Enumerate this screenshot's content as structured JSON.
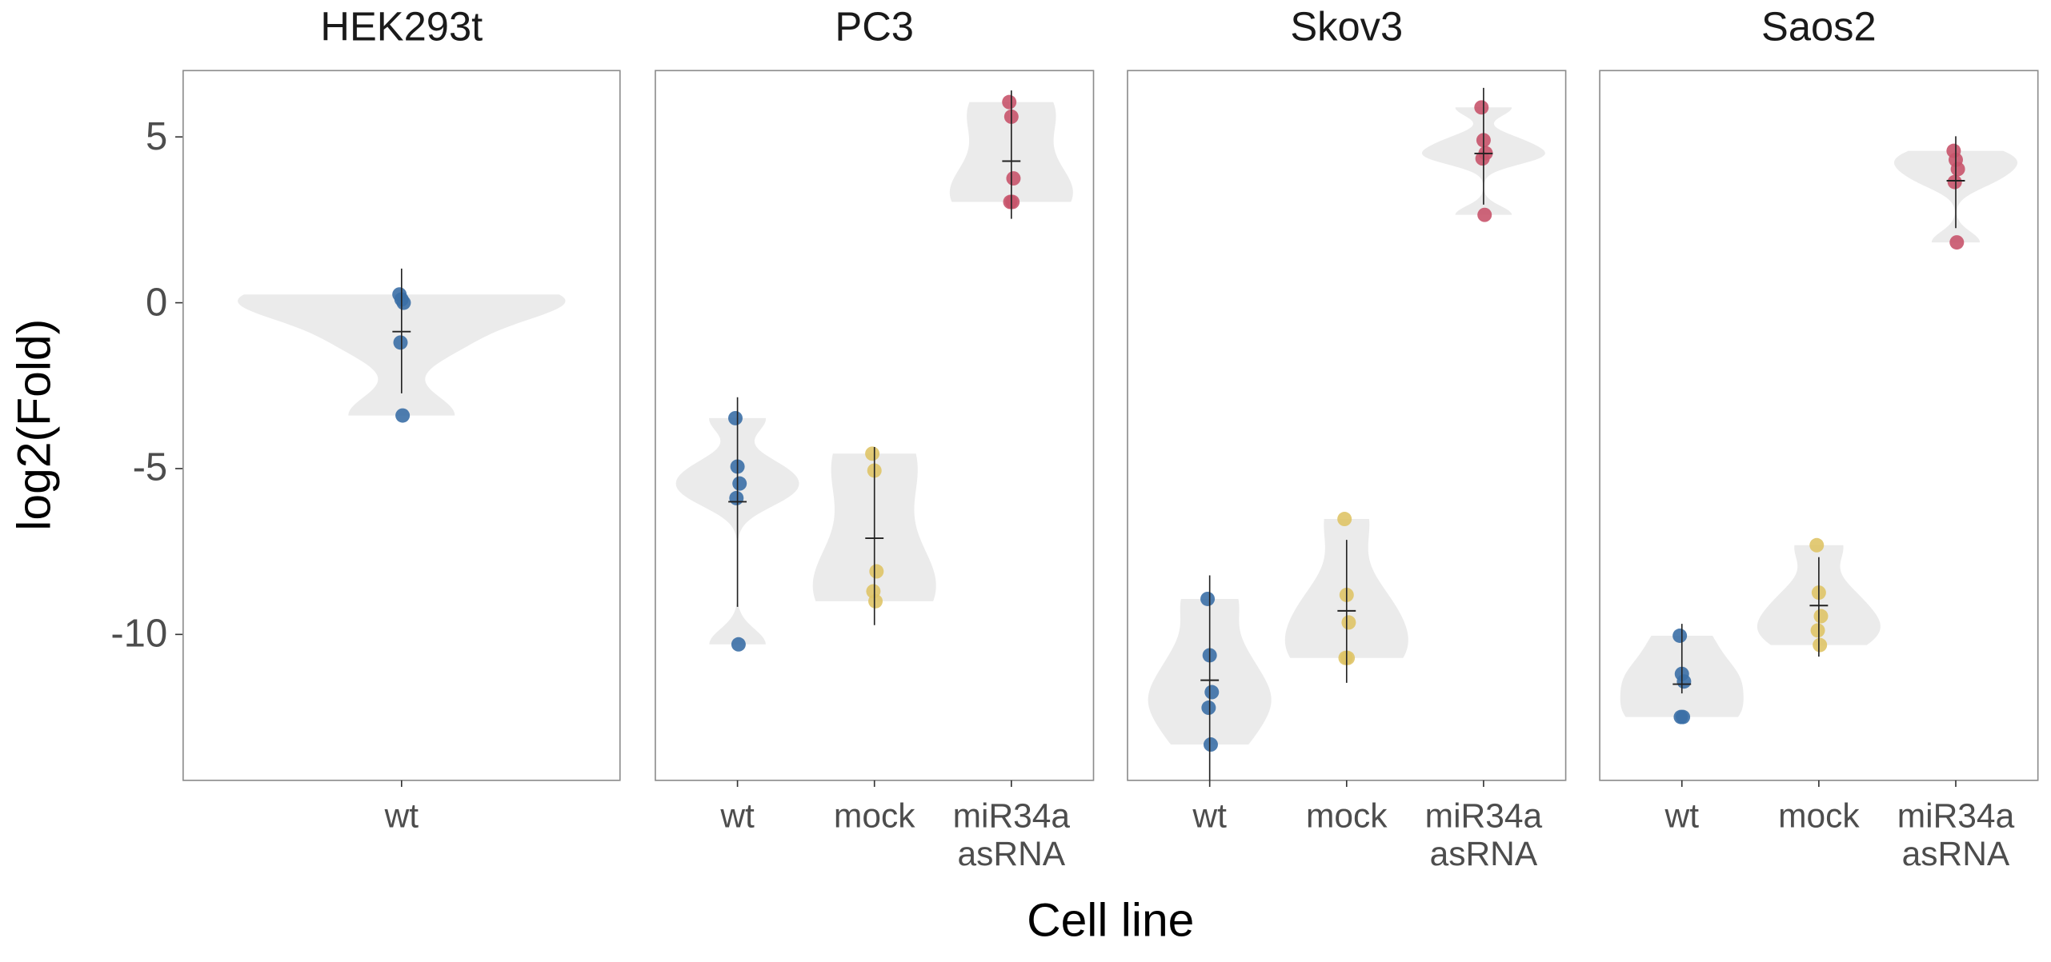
{
  "axes": {
    "y_label": "log2(Fold)",
    "x_label": "Cell line",
    "ylim": [
      -14.4,
      7.0
    ],
    "yticks": [
      5,
      0,
      -5,
      -10
    ]
  },
  "chart_data": [
    {
      "type": "violin",
      "title": "HEK293t",
      "categories": [
        "wt"
      ],
      "colors": [
        "#3b6fa6"
      ],
      "points": [
        [
          0.25,
          0.1,
          0.0,
          -1.2,
          -3.4
        ]
      ],
      "means": [
        -0.87
      ],
      "error_low": [
        -2.73
      ],
      "error_high": [
        1.03
      ]
    },
    {
      "type": "violin",
      "title": "PC3",
      "categories": [
        "wt",
        "mock",
        "miR34a\nasRNA"
      ],
      "colors": [
        "#3b6fa6",
        "#dfc467",
        "#c8546b"
      ],
      "points": [
        [
          -3.48,
          -4.94,
          -5.45,
          -5.89,
          -10.3
        ],
        [
          -4.55,
          -5.06,
          -8.1,
          -8.7,
          -9.0
        ],
        [
          6.05,
          5.61,
          3.75,
          3.04,
          3.04
        ]
      ],
      "means": [
        -6.0,
        -7.1,
        4.27
      ],
      "error_low": [
        -9.17,
        -9.72,
        2.53
      ],
      "error_high": [
        -2.85,
        -4.35,
        6.4
      ]
    },
    {
      "type": "violin",
      "title": "Skov3",
      "categories": [
        "wt",
        "mock",
        "miR34a\nasRNA"
      ],
      "colors": [
        "#3b6fa6",
        "#dfc467",
        "#c8546b"
      ],
      "points": [
        [
          -8.93,
          -10.63,
          -11.74,
          -12.21,
          -13.32
        ],
        [
          -6.52,
          -8.81,
          -9.64,
          -10.71,
          -10.71
        ],
        [
          5.89,
          4.9,
          4.51,
          4.35,
          2.65
        ]
      ],
      "means": [
        -11.38,
        -9.29,
        4.5
      ],
      "error_low": [
        -14.5,
        -11.46,
        2.96
      ],
      "error_high": [
        -8.22,
        -7.15,
        6.48
      ]
    },
    {
      "type": "violin",
      "title": "Saos2",
      "categories": [
        "wt",
        "mock",
        "miR34a\nasRNA"
      ],
      "colors": [
        "#3b6fa6",
        "#dfc467",
        "#c8546b"
      ],
      "points": [
        [
          -10.04,
          -11.19,
          -11.42,
          -12.49,
          -12.49
        ],
        [
          -7.31,
          -8.74,
          -9.45,
          -9.88,
          -10.32
        ],
        [
          4.58,
          4.31,
          4.03,
          3.64,
          1.82
        ]
      ],
      "means": [
        -11.5,
        -9.13,
        3.68
      ],
      "error_low": [
        -11.78,
        -10.67,
        2.25
      ],
      "error_high": [
        -9.68,
        -7.67,
        5.02
      ]
    }
  ]
}
